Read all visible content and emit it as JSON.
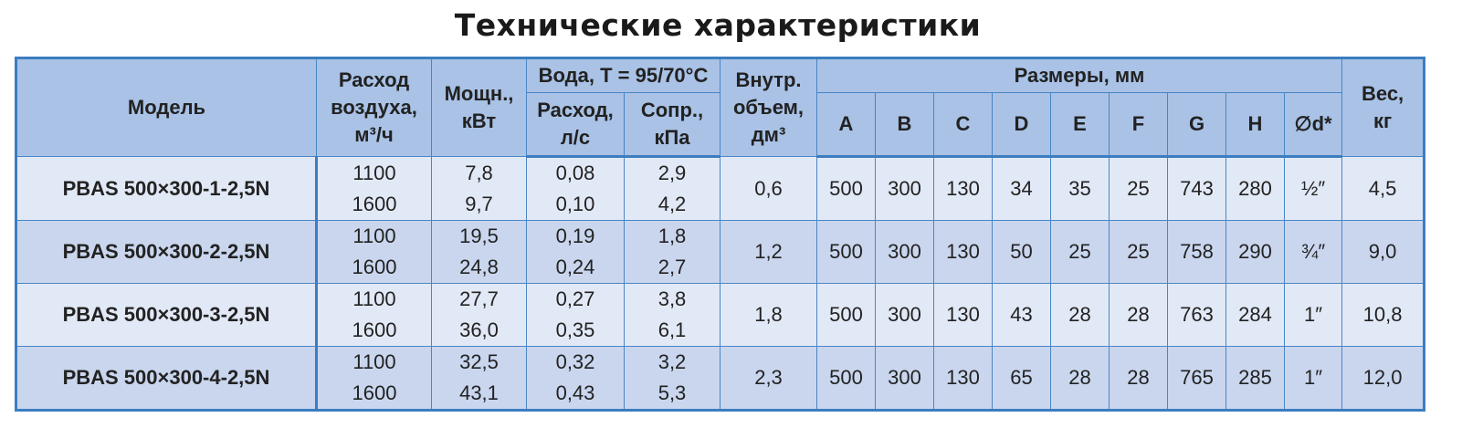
{
  "title": "Технические характеристики",
  "header": {
    "model": "Модель",
    "airflow": [
      "Расход",
      "воздуха,",
      "м³/ч"
    ],
    "power": [
      "Мощн.,",
      "кВт"
    ],
    "water": "Вода, T = 95/70°C",
    "water_flow": [
      "Расход,",
      "л/с"
    ],
    "water_resistance": [
      "Сопр.,",
      "кПа"
    ],
    "volume": [
      "Внутр.",
      "объем,",
      "дм³"
    ],
    "dimensions": "Размеры, мм",
    "dims": [
      "A",
      "B",
      "C",
      "D",
      "E",
      "F",
      "G",
      "H",
      "∅d*"
    ],
    "weight": [
      "Вес,",
      "кг"
    ]
  },
  "rows": [
    {
      "model": "PBAS 500×300-1-2,5N",
      "airflow": [
        "1100",
        "1600"
      ],
      "power": [
        "7,8",
        "9,7"
      ],
      "water_flow": [
        "0,08",
        "0,10"
      ],
      "water_resistance": [
        "2,9",
        "4,2"
      ],
      "volume": "0,6",
      "dims": [
        "500",
        "300",
        "130",
        "34",
        "35",
        "25",
        "743",
        "280",
        "½″"
      ],
      "weight": "4,5"
    },
    {
      "model": "PBAS 500×300-2-2,5N",
      "airflow": [
        "1100",
        "1600"
      ],
      "power": [
        "19,5",
        "24,8"
      ],
      "water_flow": [
        "0,19",
        "0,24"
      ],
      "water_resistance": [
        "1,8",
        "2,7"
      ],
      "volume": "1,2",
      "dims": [
        "500",
        "300",
        "130",
        "50",
        "25",
        "25",
        "758",
        "290",
        "¾″"
      ],
      "weight": "9,0"
    },
    {
      "model": "PBAS 500×300-3-2,5N",
      "airflow": [
        "1100",
        "1600"
      ],
      "power": [
        "27,7",
        "36,0"
      ],
      "water_flow": [
        "0,27",
        "0,35"
      ],
      "water_resistance": [
        "3,8",
        "6,1"
      ],
      "volume": "1,8",
      "dims": [
        "500",
        "300",
        "130",
        "43",
        "28",
        "28",
        "763",
        "284",
        "1″"
      ],
      "weight": "10,8"
    },
    {
      "model": "PBAS 500×300-4-2,5N",
      "airflow": [
        "1100",
        "1600"
      ],
      "power": [
        "32,5",
        "43,1"
      ],
      "water_flow": [
        "0,32",
        "0,43"
      ],
      "water_resistance": [
        "3,2",
        "5,3"
      ],
      "volume": "2,3",
      "dims": [
        "500",
        "300",
        "130",
        "65",
        "28",
        "28",
        "765",
        "285",
        "1″"
      ],
      "weight": "12,0"
    }
  ]
}
